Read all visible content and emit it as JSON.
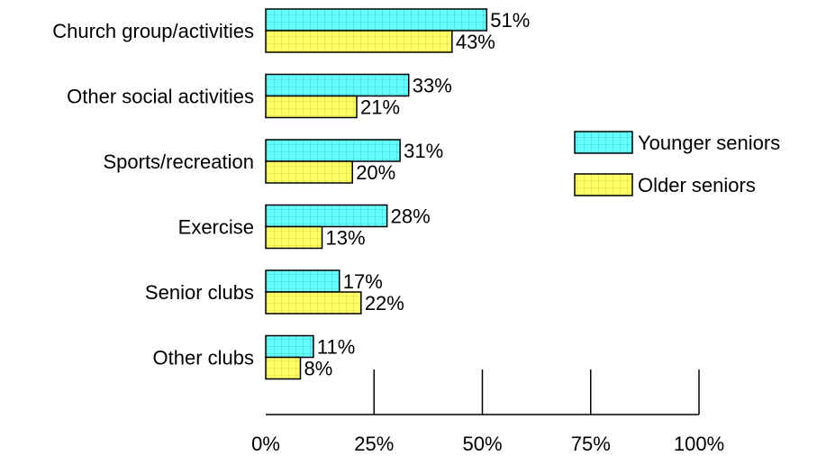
{
  "chart_data": {
    "type": "bar",
    "orientation": "horizontal",
    "categories": [
      "Church group/activities",
      "Other social activities",
      "Sports/recreation",
      "Exercise",
      "Senior clubs",
      "Other clubs"
    ],
    "series": [
      {
        "name": "Younger seniors",
        "values": [
          51,
          33,
          31,
          28,
          17,
          11
        ],
        "labels": [
          "51%",
          "33%",
          "31%",
          "28%",
          "17%",
          "11%"
        ],
        "color": "#66ffff"
      },
      {
        "name": "Older seniors",
        "values": [
          43,
          21,
          20,
          13,
          22,
          8
        ],
        "labels": [
          "43%",
          "21%",
          "20%",
          "13%",
          "22%",
          "8%"
        ],
        "color": "#ffff66"
      }
    ],
    "xlim": [
      0,
      100
    ],
    "xticks": [
      0,
      25,
      50,
      75,
      100
    ],
    "xtick_labels": [
      "0%",
      "25%",
      "50%",
      "75%",
      "100%"
    ],
    "legend_position": "right",
    "grid": false
  }
}
